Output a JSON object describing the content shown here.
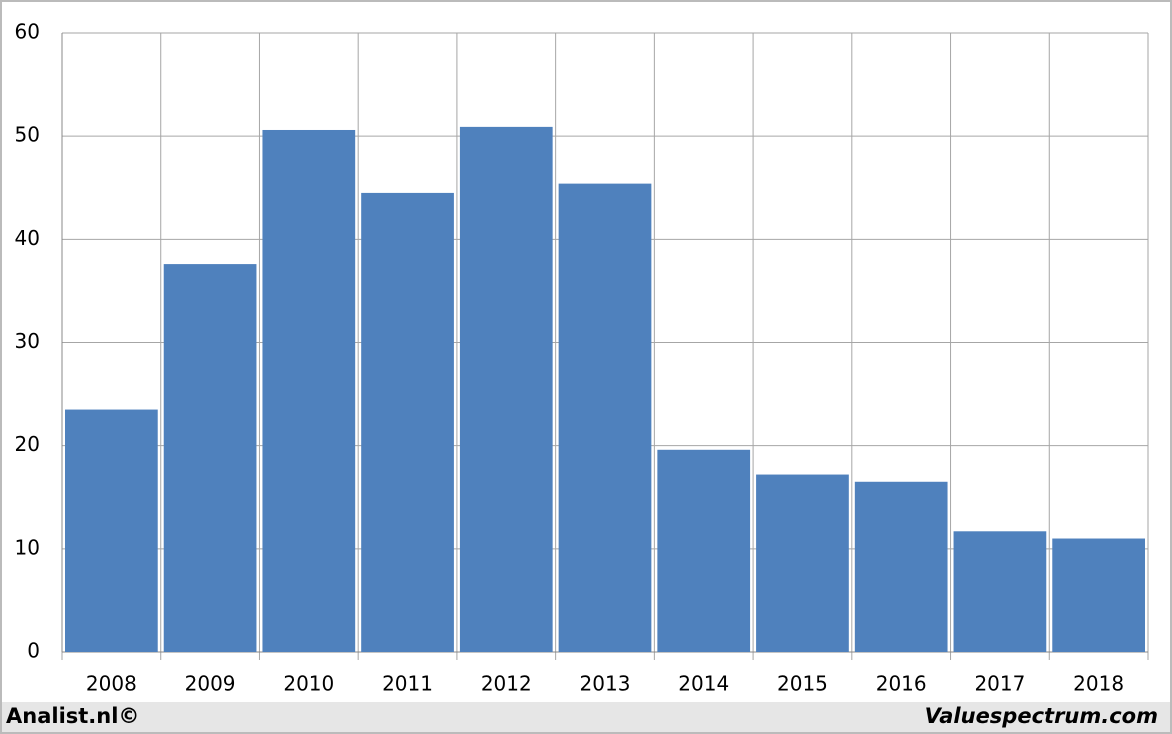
{
  "chart_data": {
    "type": "bar",
    "categories": [
      "2008",
      "2009",
      "2010",
      "2011",
      "2012",
      "2013",
      "2014",
      "2015",
      "2016",
      "2017",
      "2018"
    ],
    "values": [
      23.5,
      37.6,
      50.6,
      44.5,
      50.9,
      45.4,
      19.6,
      17.2,
      16.5,
      11.7,
      11.0
    ],
    "color": "#4f81bd",
    "ylim": [
      0,
      60
    ],
    "yticks": [
      0,
      10,
      20,
      30,
      40,
      50,
      60
    ],
    "grid": true
  },
  "footer": {
    "left": "Analist.nl©",
    "right": "Valuespectrum.com"
  }
}
